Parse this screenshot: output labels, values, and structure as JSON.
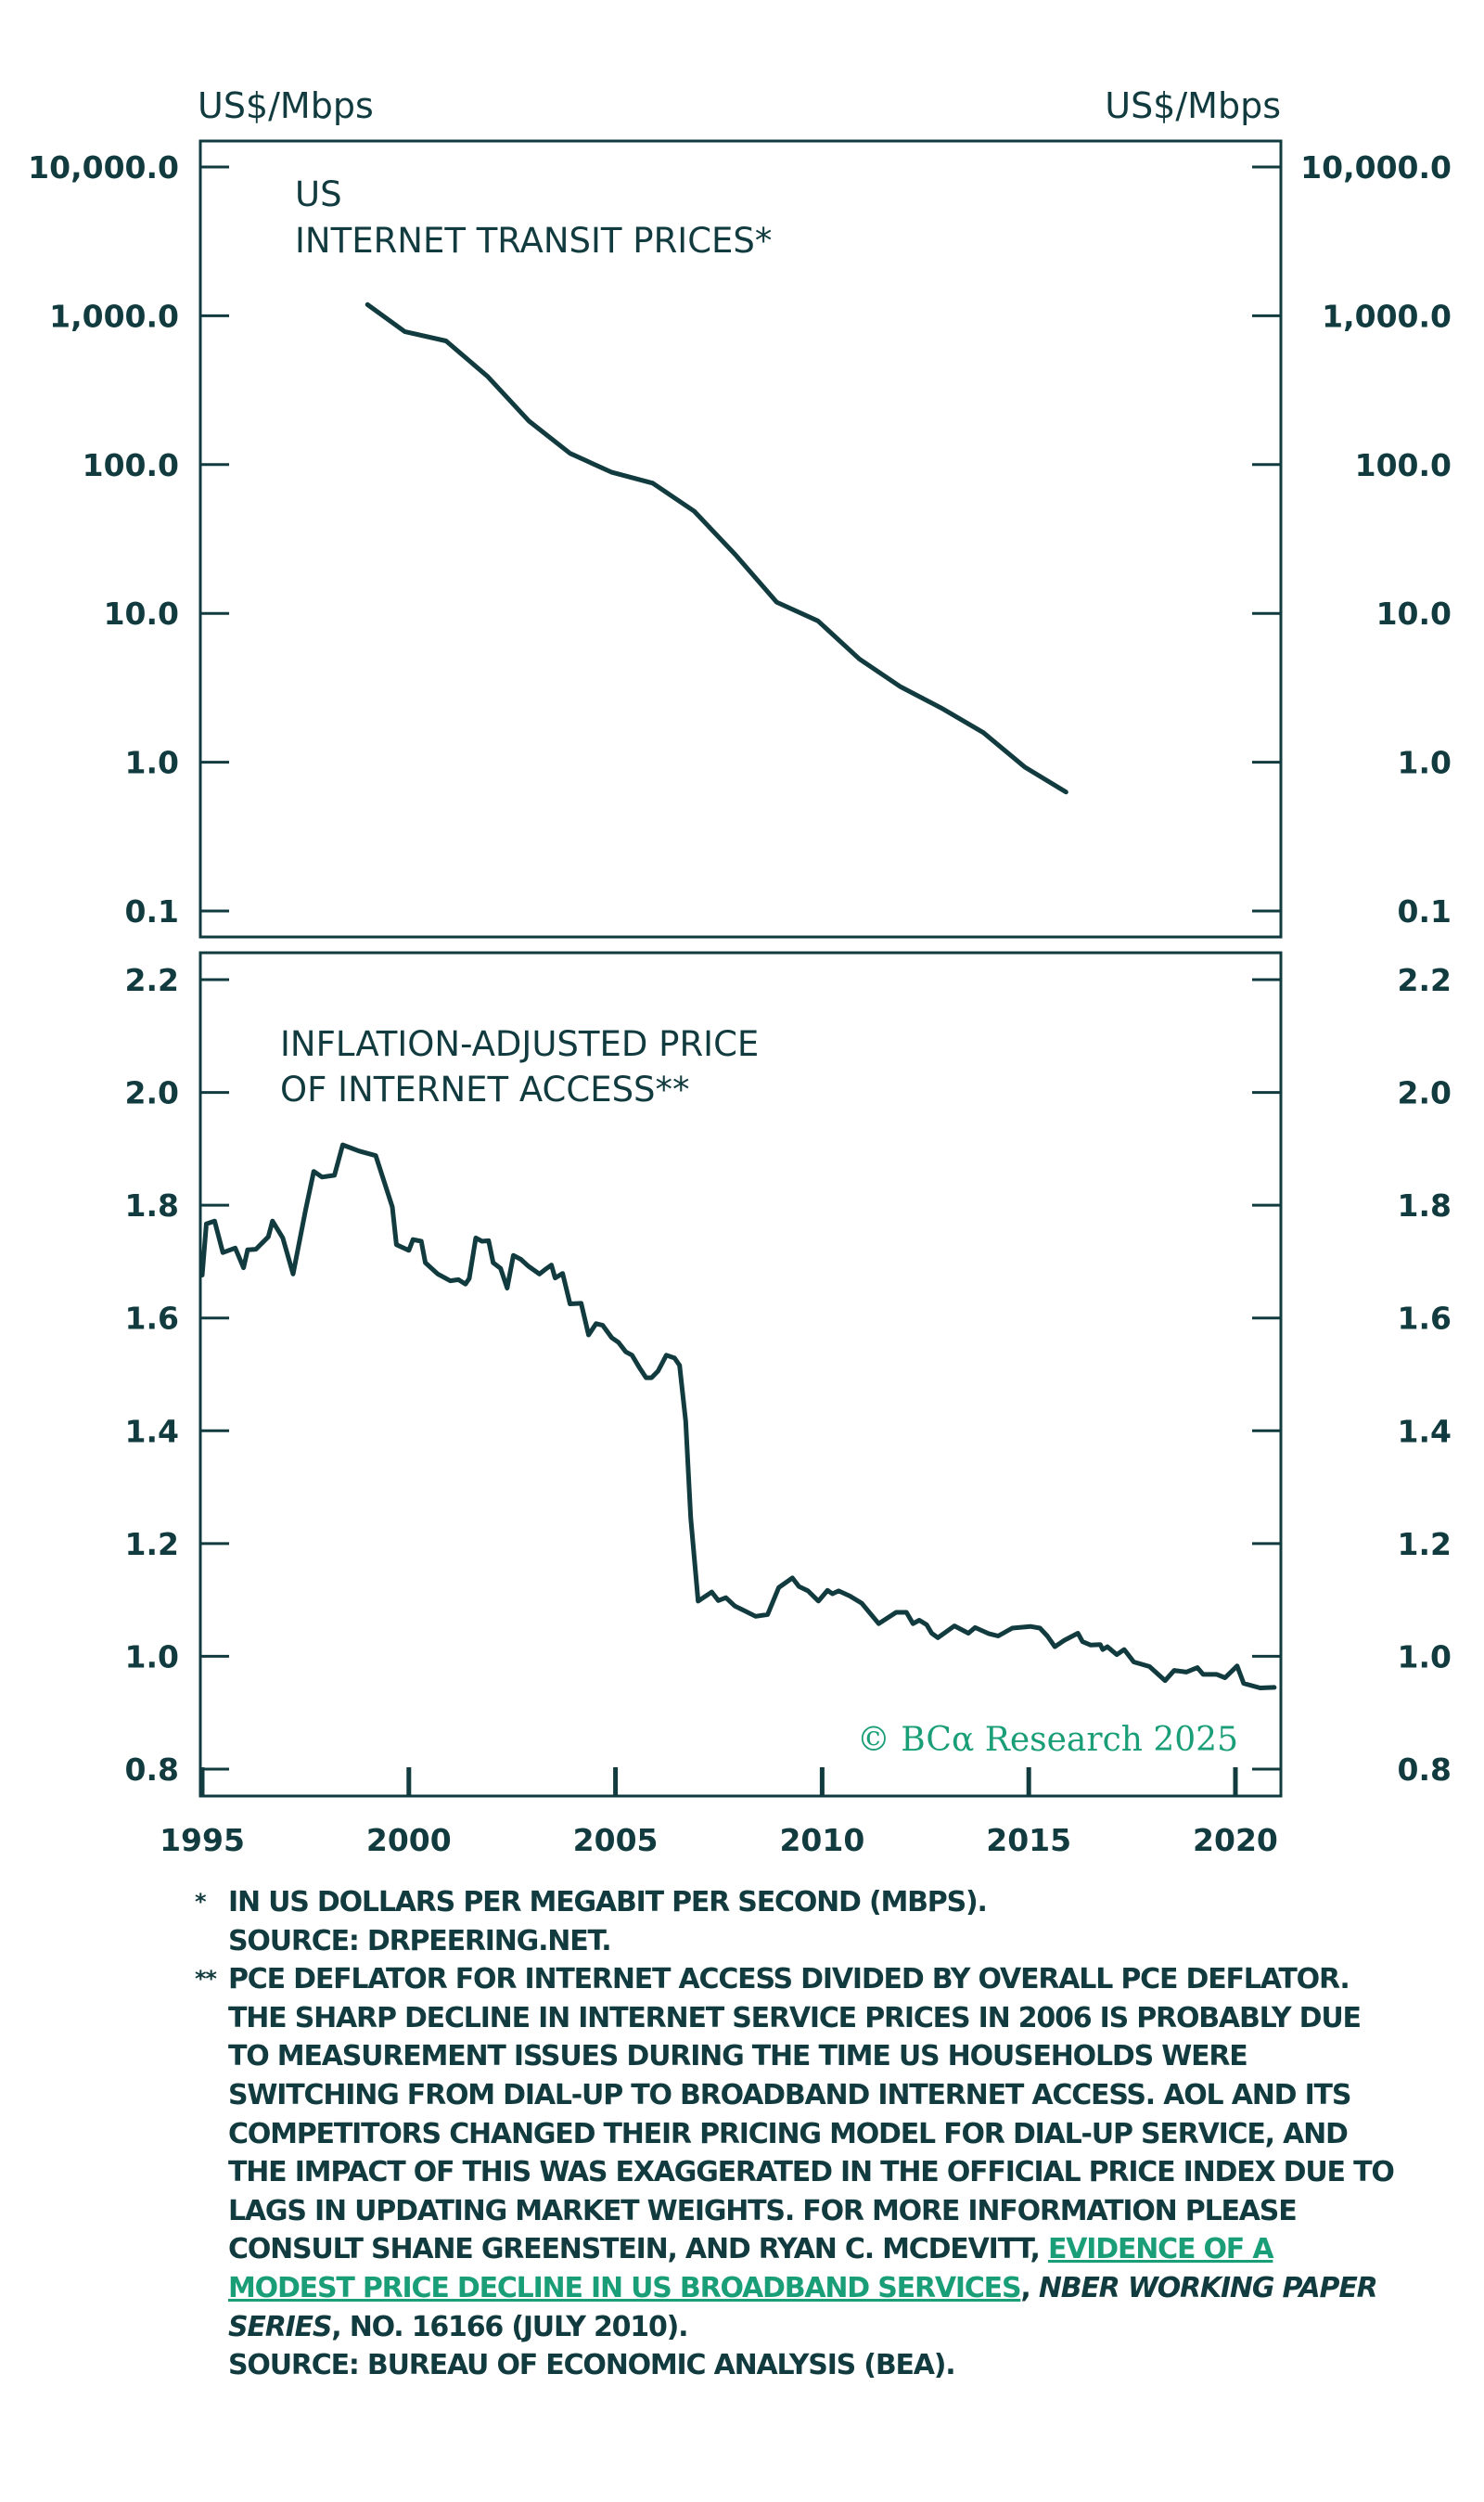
{
  "chart_data": [
    {
      "type": "line",
      "title": "US INTERNET TRANSIT PRICES*",
      "title_lines": [
        "US",
        "INTERNET TRANSIT PRICES*"
      ],
      "ylabel_left": "US$/Mbps",
      "ylabel_right": "US$/Mbps",
      "yscale": "log",
      "ylim": [
        0.1,
        10000
      ],
      "yticks": [
        10000,
        1000,
        100,
        10,
        1,
        0.1
      ],
      "ytick_labels": [
        "10,000.0",
        "1,000.0",
        "100.0",
        "10.0",
        "1.0",
        "0.1"
      ],
      "xlim": [
        1995,
        2021.1
      ],
      "grid": false,
      "series": [
        {
          "name": "US internet transit prices",
          "color": "#113b3e",
          "x": [
            1999.0,
            1999.9,
            2000.9,
            2001.9,
            2002.9,
            2003.9,
            2004.9,
            2005.9,
            2006.9,
            2007.9,
            2008.9,
            2009.9,
            2010.9,
            2011.9,
            2012.9,
            2013.9,
            2014.9,
            2015.9
          ],
          "y": [
            1190,
            783,
            678,
            392,
            197,
            119,
            89,
            75,
            48.7,
            24.8,
            11.9,
            8.9,
            4.94,
            3.21,
            2.3,
            1.58,
            0.93,
            0.63
          ]
        }
      ]
    },
    {
      "type": "line",
      "title": "INFLATION-ADJUSTED PRICE OF INTERNET ACCESS**",
      "title_lines": [
        "INFLATION-ADJUSTED PRICE",
        "OF INTERNET ACCESS**"
      ],
      "ylim": [
        0.76,
        2.24
      ],
      "yticks": [
        2.2,
        2.0,
        1.8,
        1.6,
        1.4,
        1.2,
        1.0,
        0.8
      ],
      "ytick_labels": [
        "2.2",
        "2.0",
        "1.8",
        "1.6",
        "1.4",
        "1.2",
        "1.0",
        "0.8"
      ],
      "xlim": [
        1995,
        2021.1
      ],
      "xticks": [
        1995,
        2000,
        2005,
        2010,
        2015,
        2020
      ],
      "xtick_labels": [
        "1995",
        "2000",
        "2005",
        "2010",
        "2015",
        "2020"
      ],
      "grid": false,
      "series": [
        {
          "name": "Inflation-adjusted price of internet access",
          "color": "#113b3e",
          "x": [
            1995.0,
            1995.1,
            1995.3,
            1995.5,
            1995.8,
            1996.0,
            1996.1,
            1996.3,
            1996.6,
            1996.7,
            1996.95,
            1997.2,
            1997.5,
            1997.7,
            1997.9,
            1998.2,
            1998.4,
            1998.8,
            1999.2,
            1999.6,
            1999.7,
            2000.0,
            2000.1,
            2000.3,
            2000.4,
            2000.7,
            2001.0,
            2001.2,
            2001.37,
            2001.46,
            2001.62,
            2001.77,
            2001.93,
            2002.04,
            2002.22,
            2002.38,
            2002.53,
            2002.71,
            2002.89,
            2003.16,
            2003.3,
            2003.45,
            2003.54,
            2003.72,
            2003.9,
            2004.17,
            2004.35,
            2004.53,
            2004.69,
            2004.91,
            2005.07,
            2005.25,
            2005.4,
            2005.58,
            2005.74,
            2005.87,
            2006.03,
            2006.23,
            2006.43,
            2006.55,
            2006.7,
            2006.82,
            2007.0,
            2007.33,
            2007.49,
            2007.67,
            2007.89,
            2008.12,
            2008.39,
            2008.68,
            2008.95,
            2009.28,
            2009.44,
            2009.66,
            2009.91,
            2010.13,
            2010.25,
            2010.4,
            2010.67,
            2010.96,
            2011.37,
            2011.79,
            2012.04,
            2012.2,
            2012.35,
            2012.53,
            2012.65,
            2012.8,
            2013.2,
            2013.54,
            2013.7,
            2014.04,
            2014.26,
            2014.6,
            2015.04,
            2015.27,
            2015.45,
            2015.63,
            2015.85,
            2016.19,
            2016.3,
            2016.5,
            2016.73,
            2016.79,
            2016.9,
            2017.13,
            2017.31,
            2017.54,
            2017.92,
            2018.3,
            2018.52,
            2018.81,
            2019.08,
            2019.22,
            2019.55,
            2019.75,
            2020.04,
            2020.2,
            2020.6,
            2020.94
          ],
          "y": [
            1.676,
            1.767,
            1.772,
            1.716,
            1.724,
            1.689,
            1.721,
            1.722,
            1.744,
            1.772,
            1.742,
            1.678,
            1.791,
            1.86,
            1.85,
            1.853,
            1.907,
            1.896,
            1.888,
            1.797,
            1.73,
            1.72,
            1.739,
            1.736,
            1.698,
            1.678,
            1.666,
            1.668,
            1.66,
            1.67,
            1.742,
            1.736,
            1.737,
            1.698,
            1.688,
            1.653,
            1.711,
            1.704,
            1.692,
            1.678,
            1.686,
            1.694,
            1.671,
            1.679,
            1.625,
            1.626,
            1.57,
            1.59,
            1.587,
            1.565,
            1.557,
            1.54,
            1.534,
            1.512,
            1.494,
            1.494,
            1.506,
            1.534,
            1.529,
            1.516,
            1.417,
            1.246,
            1.098,
            1.114,
            1.099,
            1.104,
            1.089,
            1.081,
            1.071,
            1.074,
            1.122,
            1.139,
            1.124,
            1.116,
            1.098,
            1.117,
            1.111,
            1.116,
            1.107,
            1.094,
            1.058,
            1.078,
            1.078,
            1.058,
            1.064,
            1.056,
            1.041,
            1.033,
            1.054,
            1.041,
            1.051,
            1.04,
            1.036,
            1.05,
            1.053,
            1.05,
            1.036,
            1.017,
            1.028,
            1.041,
            1.026,
            1.02,
            1.021,
            1.012,
            1.017,
            1.003,
            1.012,
            0.99,
            0.982,
            0.957,
            0.975,
            0.972,
            0.98,
            0.968,
            0.968,
            0.962,
            0.983,
            0.952,
            0.944,
            0.945
          ]
        }
      ],
      "annotations": [
        "© BCα Research 2025"
      ]
    }
  ],
  "watermark": "© BCα Research 2025",
  "colors": {
    "ink": "#113b3e",
    "accent": "#1a9e78"
  },
  "footnotes": {
    "note1": {
      "mark": "*",
      "lines": [
        "IN US DOLLARS PER MEGABIT PER SECOND (MBPS).",
        "SOURCE: DRPEERING.NET."
      ]
    },
    "note2": {
      "mark": "**",
      "text_before_link": "PCE DEFLATOR FOR INTERNET ACCESS DIVIDED BY OVERALL PCE DEFLATOR. THE SHARP DECLINE IN INTERNET SERVICE PRICES IN 2006 IS PROBABLY DUE TO MEASUREMENT ISSUES DURING THE TIME US HOUSEHOLDS WERE SWITCHING FROM DIAL-UP TO BROADBAND INTERNET ACCESS. AOL AND ITS COMPETITORS CHANGED THEIR PRICING MODEL FOR DIAL-UP SERVICE, AND THE IMPACT OF THIS WAS EXAGGERATED IN THE OFFICIAL PRICE INDEX DUE TO LAGS IN UPDATING MARKET WEIGHTS. FOR MORE INFORMATION PLEASE CONSULT SHANE GREENSTEIN, AND RYAN C. MCDEVITT, ",
      "link_text": "EVIDENCE OF A MODEST PRICE DECLINE IN US BROADBAND SERVICES",
      "after_link": ", ",
      "italic_text": "NBER WORKING PAPER SERIES",
      "text_after_italic": ", NO. 16166 (JULY 2010).",
      "source": "SOURCE: BUREAU OF ECONOMIC ANALYSIS (BEA)."
    }
  }
}
